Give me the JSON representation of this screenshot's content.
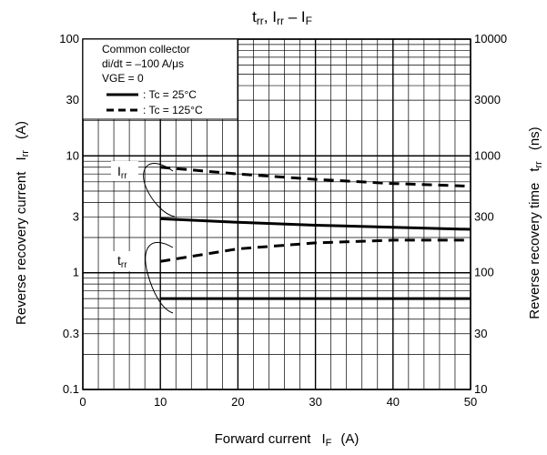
{
  "chart_data": {
    "type": "line",
    "title": {
      "main": "t",
      "sub1": "rr",
      "sep1": ", I",
      "sub2": "rr",
      "sep2": " – I",
      "sub3": "F"
    },
    "x_axis": {
      "label": "Forward current",
      "symbol": "I",
      "symbol_sub": "F",
      "unit": "(A)",
      "range": [
        0,
        50
      ],
      "ticks": [
        "0",
        "10",
        "20",
        "30",
        "40",
        "50"
      ]
    },
    "y_left": {
      "label": "Reverse recovery current",
      "symbol": "I",
      "symbol_sub": "rr",
      "unit": "(A)",
      "scale": "log",
      "range": [
        0.1,
        100
      ],
      "ticks": [
        "0.1",
        "0.3",
        "1",
        "3",
        "10",
        "30",
        "100"
      ]
    },
    "y_right": {
      "label": "Reverse recovery time",
      "symbol": "t",
      "symbol_sub": "rr",
      "unit": "(ns)",
      "scale": "log",
      "range": [
        10,
        10000
      ],
      "ticks": [
        "10",
        "30",
        "100",
        "300",
        "1000",
        "3000",
        "10000"
      ]
    },
    "grid": true,
    "legend": {
      "placement": "top-left",
      "lines": [
        "Common collector",
        "di/dt = –100 A/μs",
        "VGE = 0"
      ],
      "entries": [
        {
          "label": ": Tc = 25°C",
          "style": "solid"
        },
        {
          "label": ": Tc = 125°C",
          "style": "dashed"
        }
      ]
    },
    "annotations": {
      "irr": {
        "main": "I",
        "sub": "rr"
      },
      "trr": {
        "main": "t",
        "sub": "rr"
      }
    },
    "series": [
      {
        "group": "Irr",
        "axis": "left",
        "style": "dashed",
        "x": [
          10,
          20,
          30,
          40,
          50
        ],
        "y": [
          8.0,
          7.0,
          6.3,
          5.8,
          5.5
        ]
      },
      {
        "group": "Irr",
        "axis": "left",
        "style": "solid",
        "x": [
          10,
          20,
          30,
          40,
          50
        ],
        "y": [
          2.9,
          2.7,
          2.55,
          2.45,
          2.35
        ]
      },
      {
        "group": "trr",
        "axis": "right",
        "style": "dashed",
        "x": [
          10,
          20,
          30,
          40,
          50
        ],
        "y": [
          125,
          160,
          180,
          190,
          190
        ]
      },
      {
        "group": "trr",
        "axis": "right",
        "style": "solid",
        "x": [
          10,
          20,
          30,
          40,
          50
        ],
        "y": [
          60,
          60,
          60,
          60,
          60
        ]
      }
    ]
  }
}
